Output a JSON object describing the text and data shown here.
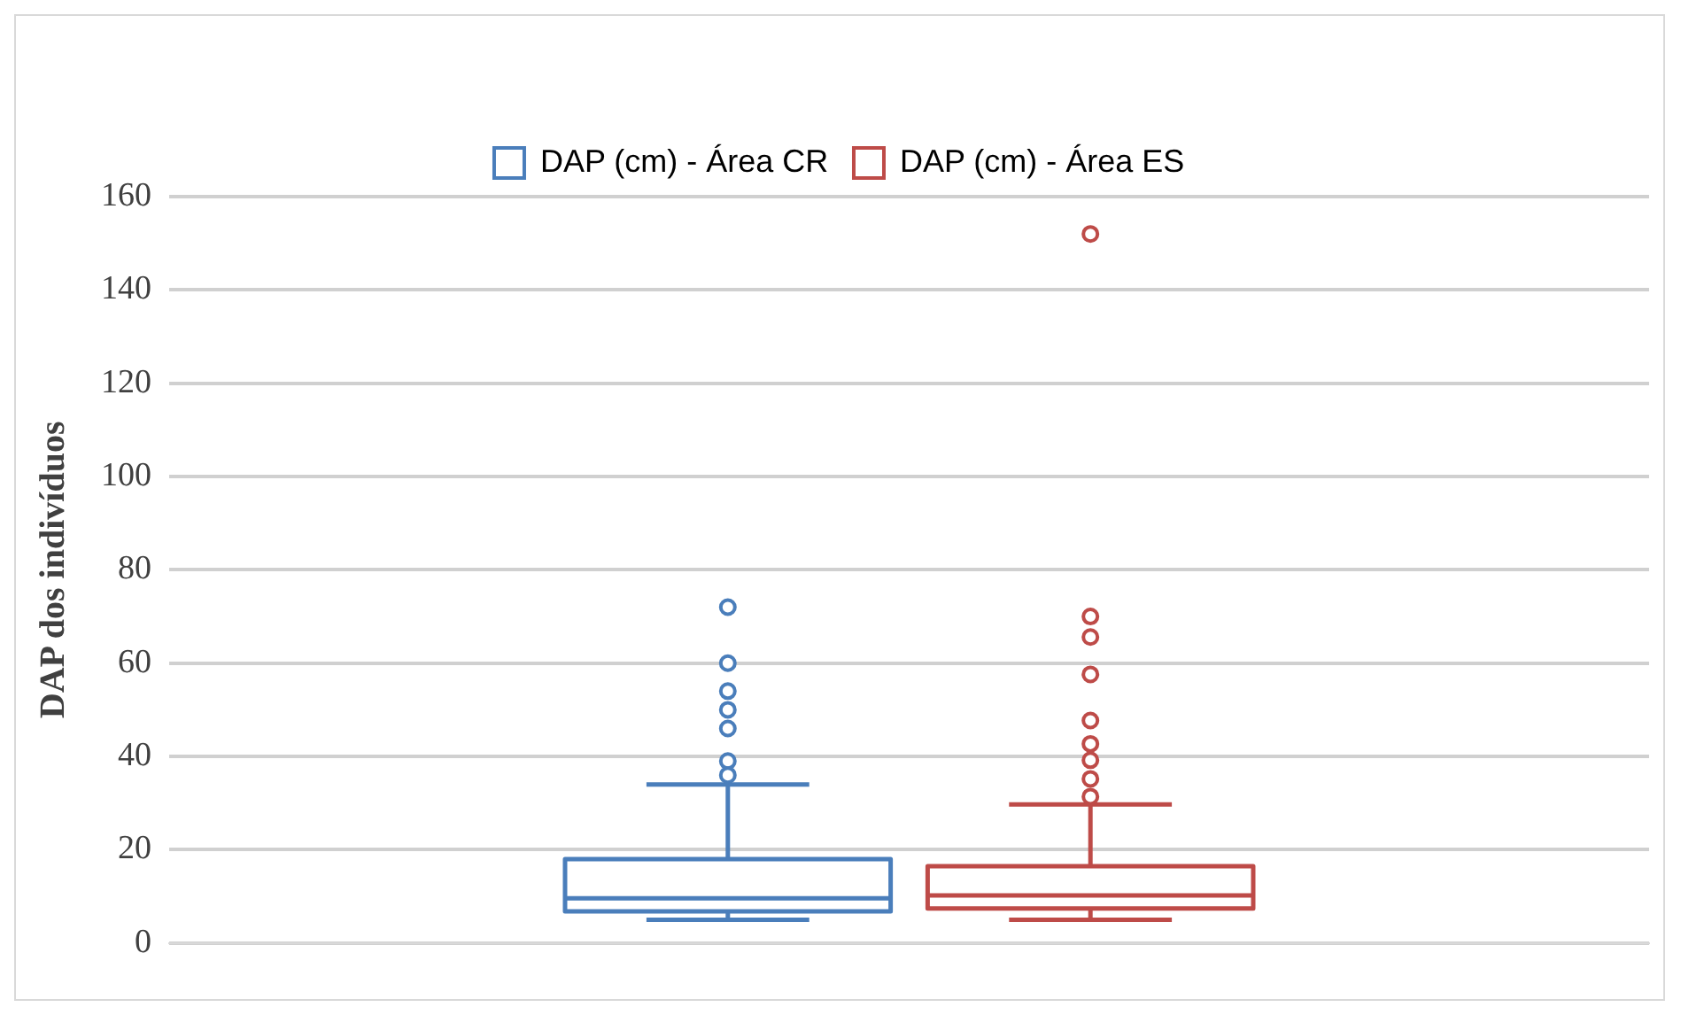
{
  "chart_data": {
    "type": "box",
    "ylabel": "DAP dos indivíduos",
    "categories": [
      null
    ],
    "ylim": [
      0,
      160
    ],
    "yticks": [
      0,
      20,
      40,
      60,
      80,
      100,
      120,
      140,
      160
    ],
    "grid": "y",
    "legend": "top",
    "marker": "circle",
    "series": [
      {
        "name": "DAP (cm) - Área CR",
        "color": "#4a7ebb",
        "boxes": [
          {
            "low": 5,
            "q1": 6.8,
            "median": 9.6,
            "q3": 18,
            "high": 34,
            "outliers": [
              72,
              60,
              54,
              50,
              46,
              39,
              36
            ]
          }
        ]
      },
      {
        "name": "DAP (cm) - Área ES",
        "color": "#be4b48",
        "boxes": [
          {
            "low": 5,
            "q1": 7.4,
            "median": 10.2,
            "q3": 16.5,
            "high": 29.7,
            "outliers": [
              152,
              70,
              65.6,
              57.6,
              47.7,
              42.7,
              39.2,
              35.2,
              31.4
            ]
          }
        ]
      }
    ]
  }
}
